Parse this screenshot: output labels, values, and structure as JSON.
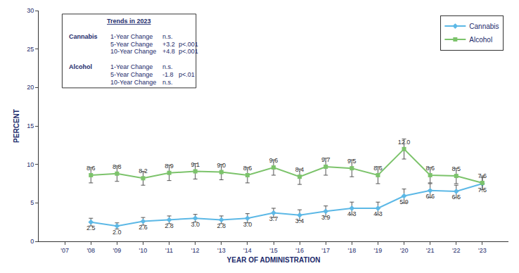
{
  "chart_data": {
    "type": "line",
    "xlabel": "YEAR OF ADMINISTRATION",
    "ylabel": "PERCENT",
    "categories": [
      "'07",
      "'08",
      "'09",
      "'10",
      "'11",
      "'12",
      "'13",
      "'14",
      "'15",
      "'16",
      "'17",
      "'18",
      "'19",
      "'20",
      "'21",
      "'22",
      "'23"
    ],
    "series": [
      {
        "name": "Cannabis",
        "color": "#5cb8e6",
        "marker": "diamond",
        "line_style": "solid",
        "values": [
          null,
          2.5,
          2.0,
          2.6,
          2.8,
          3.0,
          2.8,
          3.0,
          3.7,
          3.4,
          3.9,
          4.3,
          4.3,
          5.9,
          6.6,
          6.5,
          7.5
        ],
        "value_labels": [
          null,
          "2.5",
          "2.0",
          "2.6",
          "2.8",
          "3.0",
          "2.8",
          "3.0",
          "3.7",
          "3.4",
          "3.9",
          "4.3",
          "4.3",
          "5.9",
          "6.6",
          "6.5",
          "7.5"
        ],
        "error": [
          null,
          0.5,
          0.4,
          0.5,
          0.5,
          0.5,
          0.5,
          0.6,
          0.6,
          0.7,
          0.7,
          0.8,
          0.8,
          0.9,
          0.9,
          0.8,
          0.8
        ]
      },
      {
        "name": "Alcohol",
        "color": "#7cc36b",
        "marker": "square",
        "line_style": "solid",
        "values": [
          null,
          8.6,
          8.8,
          8.2,
          8.9,
          9.1,
          9.0,
          8.6,
          9.6,
          8.4,
          9.7,
          9.5,
          8.6,
          12.0,
          8.6,
          8.5,
          7.6
        ],
        "value_labels": [
          null,
          "8.6",
          "8.8",
          "8.2",
          "8.9",
          "9.1",
          "9.0",
          "8.6",
          "9.6",
          "8.4",
          "9.7",
          "9.5",
          "8.6",
          "12.0",
          "8.6",
          "8.5",
          "7.6"
        ],
        "error": [
          null,
          1.0,
          1.0,
          0.9,
          1.0,
          1.0,
          1.0,
          1.0,
          1.0,
          1.0,
          1.1,
          1.1,
          1.1,
          1.3,
          1.0,
          1.0,
          0.9
        ]
      }
    ],
    "ylim": [
      0,
      30
    ],
    "yticks": [
      0,
      5,
      10,
      15,
      20,
      25,
      30
    ],
    "grid": false,
    "legend": "top right",
    "data_labels": true,
    "annotations": [
      {
        "title": "Trends in 2023",
        "groups": [
          {
            "name": "Cannabis",
            "rows": [
              [
                "1-Year Change",
                "n.s."
              ],
              [
                "5-Year Change",
                "+3.2",
                "p<.001"
              ],
              [
                "10-Year Change",
                "+4.8",
                "p<.001"
              ]
            ]
          },
          {
            "name": "Alcohol",
            "rows": [
              [
                "1-Year Change",
                "n.s."
              ],
              [
                "5-Year Change",
                "-1.8",
                "p<.01"
              ],
              [
                "10-Year Change",
                "n.s."
              ]
            ]
          }
        ]
      }
    ]
  }
}
